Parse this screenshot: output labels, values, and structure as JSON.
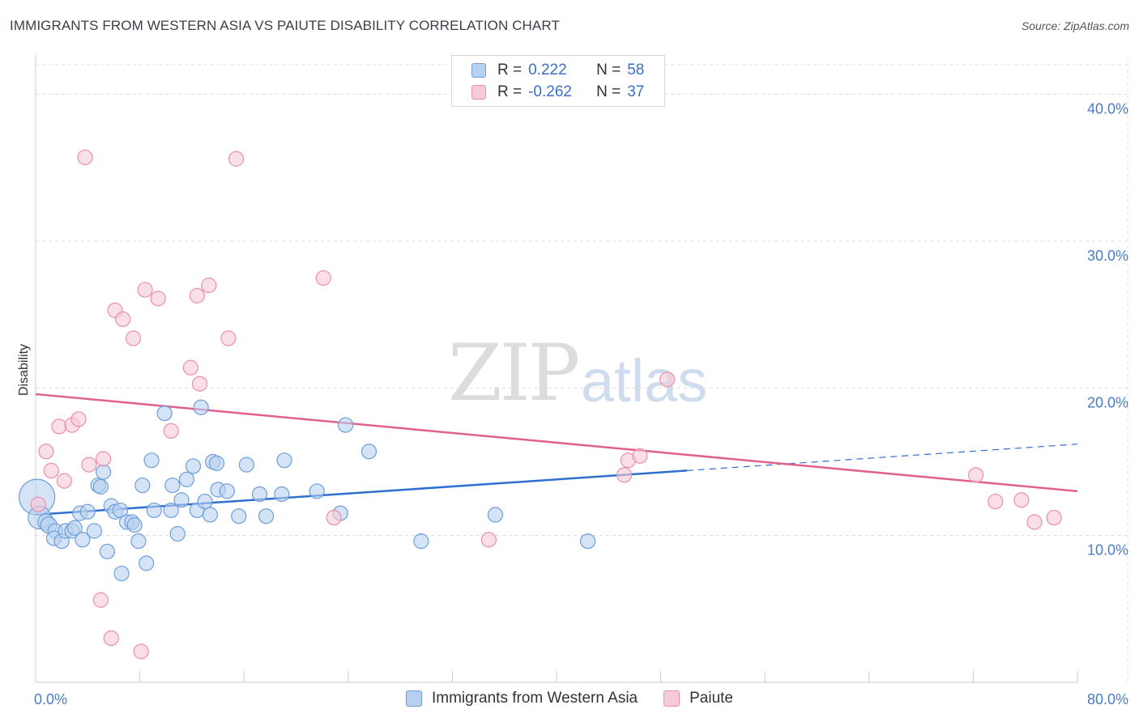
{
  "title": "IMMIGRANTS FROM WESTERN ASIA VS PAIUTE DISABILITY CORRELATION CHART",
  "source": "Source: ZipAtlas.com",
  "watermark": {
    "zip": "ZIP",
    "atlas": "atlas"
  },
  "legend": {
    "r_label": "R =",
    "n_label": "N =",
    "series": [
      {
        "r": "0.222",
        "n": "58"
      },
      {
        "r": "-0.262",
        "n": "37"
      }
    ]
  },
  "colors": {
    "blue_fill": "#b7d0f0",
    "blue_stroke": "#6d9fd8",
    "blue_line": "#2f6fcf",
    "pink_fill": "#f8c9d7",
    "pink_stroke": "#ea8fad",
    "pink_line": "#e0628b",
    "grid": "#dddddd",
    "axis_text": "#4a7bc8"
  },
  "chart_data": {
    "type": "scatter",
    "title": "IMMIGRANTS FROM WESTERN ASIA VS PAIUTE DISABILITY CORRELATION CHART",
    "xlabel": "",
    "ylabel": "Disability",
    "xlim": [
      0,
      80
    ],
    "ylim": [
      0,
      42
    ],
    "x_tick_labels": [
      "0.0%",
      "80.0%"
    ],
    "y_ticks": [
      10,
      20,
      30,
      40
    ],
    "y_tick_labels": [
      "10.0%",
      "20.0%",
      "30.0%",
      "40.0%"
    ],
    "series": [
      {
        "name": "Immigrants from Western Asia",
        "color": "#6d9fd8",
        "trend": {
          "x0": 0,
          "y0": 11.4,
          "x1": 50,
          "y1": 14.4,
          "dash_to_x": 80,
          "dash_to_y": 16.2
        },
        "points": [
          [
            0.1,
            12.6,
            22
          ],
          [
            0.3,
            11.2,
            14
          ],
          [
            0.8,
            10.9,
            10
          ],
          [
            1.0,
            10.7,
            10
          ],
          [
            1.5,
            10.3,
            9
          ],
          [
            1.4,
            9.8,
            9
          ],
          [
            2.0,
            9.6,
            9
          ],
          [
            2.3,
            10.3,
            9
          ],
          [
            2.8,
            10.3,
            9
          ],
          [
            3.0,
            10.5,
            9
          ],
          [
            3.4,
            11.5,
            9
          ],
          [
            3.6,
            9.7,
            9
          ],
          [
            4.0,
            11.6,
            9
          ],
          [
            4.5,
            10.3,
            9
          ],
          [
            4.8,
            13.4,
            9
          ],
          [
            5.0,
            13.3,
            9
          ],
          [
            5.2,
            14.3,
            9
          ],
          [
            5.5,
            8.9,
            9
          ],
          [
            5.8,
            12.0,
            9
          ],
          [
            6.1,
            11.6,
            9
          ],
          [
            6.5,
            11.7,
            9
          ],
          [
            6.6,
            7.4,
            9
          ],
          [
            7.0,
            10.9,
            9
          ],
          [
            7.4,
            10.9,
            9
          ],
          [
            7.6,
            10.7,
            9
          ],
          [
            7.9,
            9.6,
            9
          ],
          [
            8.2,
            13.4,
            9
          ],
          [
            8.5,
            8.1,
            9
          ],
          [
            8.9,
            15.1,
            9
          ],
          [
            9.1,
            11.7,
            9
          ],
          [
            9.9,
            18.3,
            9
          ],
          [
            10.4,
            11.7,
            9
          ],
          [
            10.5,
            13.4,
            9
          ],
          [
            10.9,
            10.1,
            9
          ],
          [
            11.2,
            12.4,
            9
          ],
          [
            11.6,
            13.8,
            9
          ],
          [
            12.1,
            14.7,
            9
          ],
          [
            12.4,
            11.7,
            9
          ],
          [
            12.7,
            18.7,
            9
          ],
          [
            13.0,
            12.3,
            9
          ],
          [
            13.4,
            11.4,
            9
          ],
          [
            13.6,
            15.0,
            9
          ],
          [
            13.9,
            14.9,
            9
          ],
          [
            14.0,
            13.1,
            9
          ],
          [
            14.7,
            13.0,
            9
          ],
          [
            15.6,
            11.3,
            9
          ],
          [
            16.2,
            14.8,
            9
          ],
          [
            17.2,
            12.8,
            9
          ],
          [
            17.7,
            11.3,
            9
          ],
          [
            18.9,
            12.8,
            9
          ],
          [
            19.1,
            15.1,
            9
          ],
          [
            21.6,
            13.0,
            9
          ],
          [
            23.4,
            11.5,
            9
          ],
          [
            23.8,
            17.5,
            9
          ],
          [
            25.6,
            15.7,
            9
          ],
          [
            29.6,
            9.6,
            9
          ],
          [
            35.3,
            11.4,
            9
          ],
          [
            42.4,
            9.6,
            9
          ]
        ]
      },
      {
        "name": "Paiute",
        "color": "#ea8fad",
        "trend": {
          "x0": 0,
          "y0": 19.6,
          "x1": 80,
          "y1": 13.0
        },
        "points": [
          [
            0.2,
            12.1,
            9
          ],
          [
            0.8,
            15.7,
            9
          ],
          [
            1.2,
            14.4,
            9
          ],
          [
            1.8,
            17.4,
            9
          ],
          [
            2.2,
            13.7,
            9
          ],
          [
            2.8,
            17.5,
            9
          ],
          [
            3.3,
            17.9,
            9
          ],
          [
            3.8,
            35.7,
            9
          ],
          [
            4.1,
            14.8,
            9
          ],
          [
            5.0,
            5.6,
            9
          ],
          [
            5.2,
            15.2,
            9
          ],
          [
            5.8,
            3.0,
            9
          ],
          [
            6.1,
            25.3,
            9
          ],
          [
            6.7,
            24.7,
            9
          ],
          [
            7.5,
            23.4,
            9
          ],
          [
            8.1,
            2.1,
            9
          ],
          [
            8.4,
            26.7,
            9
          ],
          [
            9.4,
            26.1,
            9
          ],
          [
            10.4,
            17.1,
            9
          ],
          [
            11.9,
            21.4,
            9
          ],
          [
            12.4,
            26.3,
            9
          ],
          [
            13.3,
            27.0,
            9
          ],
          [
            12.6,
            20.3,
            9
          ],
          [
            14.8,
            23.4,
            9
          ],
          [
            15.4,
            35.6,
            9
          ],
          [
            22.1,
            27.5,
            9
          ],
          [
            22.9,
            11.2,
            9
          ],
          [
            34.8,
            9.7,
            9
          ],
          [
            45.2,
            14.1,
            9
          ],
          [
            45.5,
            15.1,
            9
          ],
          [
            46.4,
            15.4,
            9
          ],
          [
            48.5,
            20.6,
            9
          ],
          [
            72.2,
            14.1,
            9
          ],
          [
            73.7,
            12.3,
            9
          ],
          [
            75.7,
            12.4,
            9
          ],
          [
            76.7,
            10.9,
            9
          ],
          [
            78.2,
            11.2,
            9
          ]
        ]
      }
    ]
  },
  "bottom_legend": [
    "Immigrants from Western Asia",
    "Paiute"
  ]
}
